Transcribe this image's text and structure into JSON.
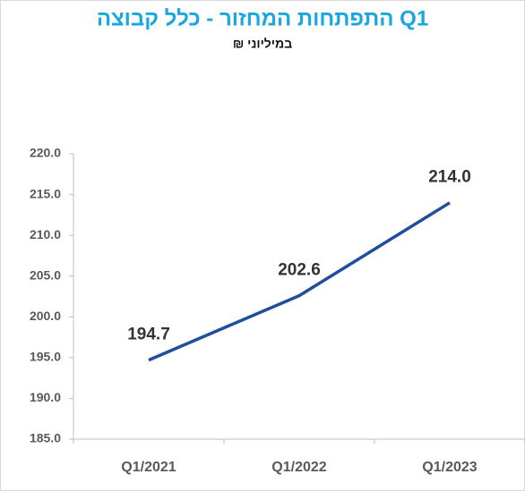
{
  "chart_data": {
    "type": "line",
    "title": "Q1 התפתחות המחזור - כלל קבוצה",
    "subtitle": "במיליוני ₪",
    "categories": [
      "Q1/2021",
      "Q1/2022",
      "Q1/2023"
    ],
    "values": [
      194.7,
      202.6,
      214.0
    ],
    "value_labels": [
      "194.7",
      "202.6",
      "214.0"
    ],
    "color": "#1f4e9c",
    "title_color": "#1aa7e0",
    "ylim": [
      185,
      220
    ],
    "yticks": [
      {
        "value": 185,
        "label": "185.0"
      },
      {
        "value": 190,
        "label": "190.0"
      },
      {
        "value": 195,
        "label": "195.0"
      },
      {
        "value": 200,
        "label": "200.0"
      },
      {
        "value": 205,
        "label": "205.0"
      },
      {
        "value": 210,
        "label": "210.0"
      },
      {
        "value": 215,
        "label": "215.0"
      },
      {
        "value": 220,
        "label": "220.0"
      }
    ],
    "grid": false
  }
}
